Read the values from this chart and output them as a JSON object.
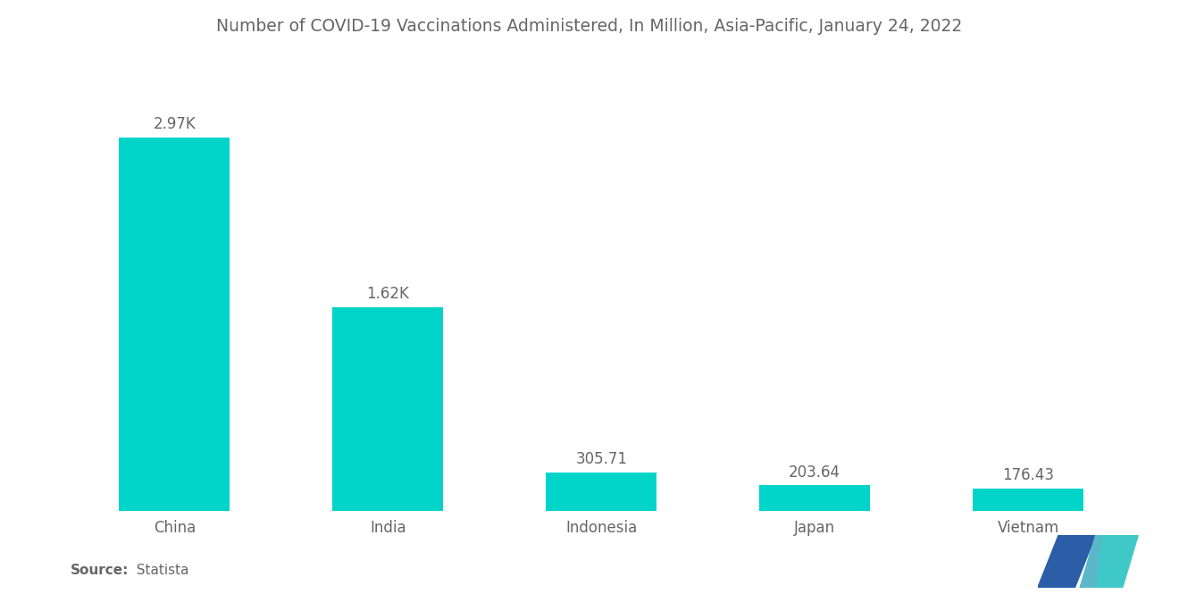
{
  "title": "Number of COVID-19 Vaccinations Administered, In Million, Asia-Pacific, January 24, 2022",
  "categories": [
    "China",
    "India",
    "Indonesia",
    "Japan",
    "Vietnam"
  ],
  "values": [
    2970,
    1620,
    305.71,
    203.64,
    176.43
  ],
  "labels": [
    "2.97K",
    "1.62K",
    "305.71",
    "203.64",
    "176.43"
  ],
  "bar_color": "#00D4C8",
  "background_color": "#ffffff",
  "source_bold": "Source:",
  "source_normal": "  Statista",
  "title_fontsize": 13.5,
  "label_fontsize": 12,
  "tick_fontsize": 12,
  "source_fontsize": 11,
  "ylim": [
    0,
    3400
  ],
  "logo_dark": "#2B5EA7",
  "logo_teal": "#3FC8C8"
}
